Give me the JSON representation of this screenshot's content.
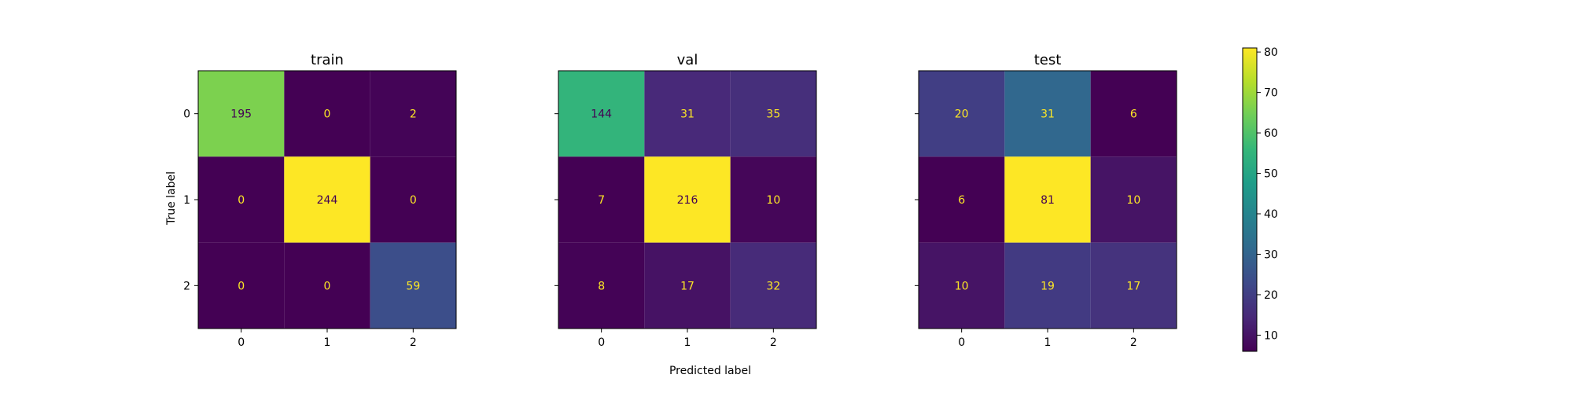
{
  "chart_data": {
    "type": "heatmap",
    "colormap": "viridis",
    "xlabel": "Predicted label",
    "ylabel": "True label",
    "classes": [
      "0",
      "1",
      "2"
    ],
    "colorbar": {
      "range": [
        6,
        81
      ],
      "ticks": [
        "10",
        "20",
        "30",
        "40",
        "50",
        "60",
        "70",
        "80"
      ]
    },
    "panels": [
      {
        "title": "train",
        "matrix": [
          [
            195,
            0,
            2
          ],
          [
            0,
            244,
            0
          ],
          [
            0,
            0,
            59
          ]
        ]
      },
      {
        "title": "val",
        "matrix": [
          [
            144,
            31,
            35
          ],
          [
            7,
            216,
            10
          ],
          [
            8,
            17,
            32
          ]
        ]
      },
      {
        "title": "test",
        "matrix": [
          [
            20,
            31,
            6
          ],
          [
            6,
            81,
            10
          ],
          [
            10,
            19,
            17
          ]
        ]
      }
    ]
  }
}
